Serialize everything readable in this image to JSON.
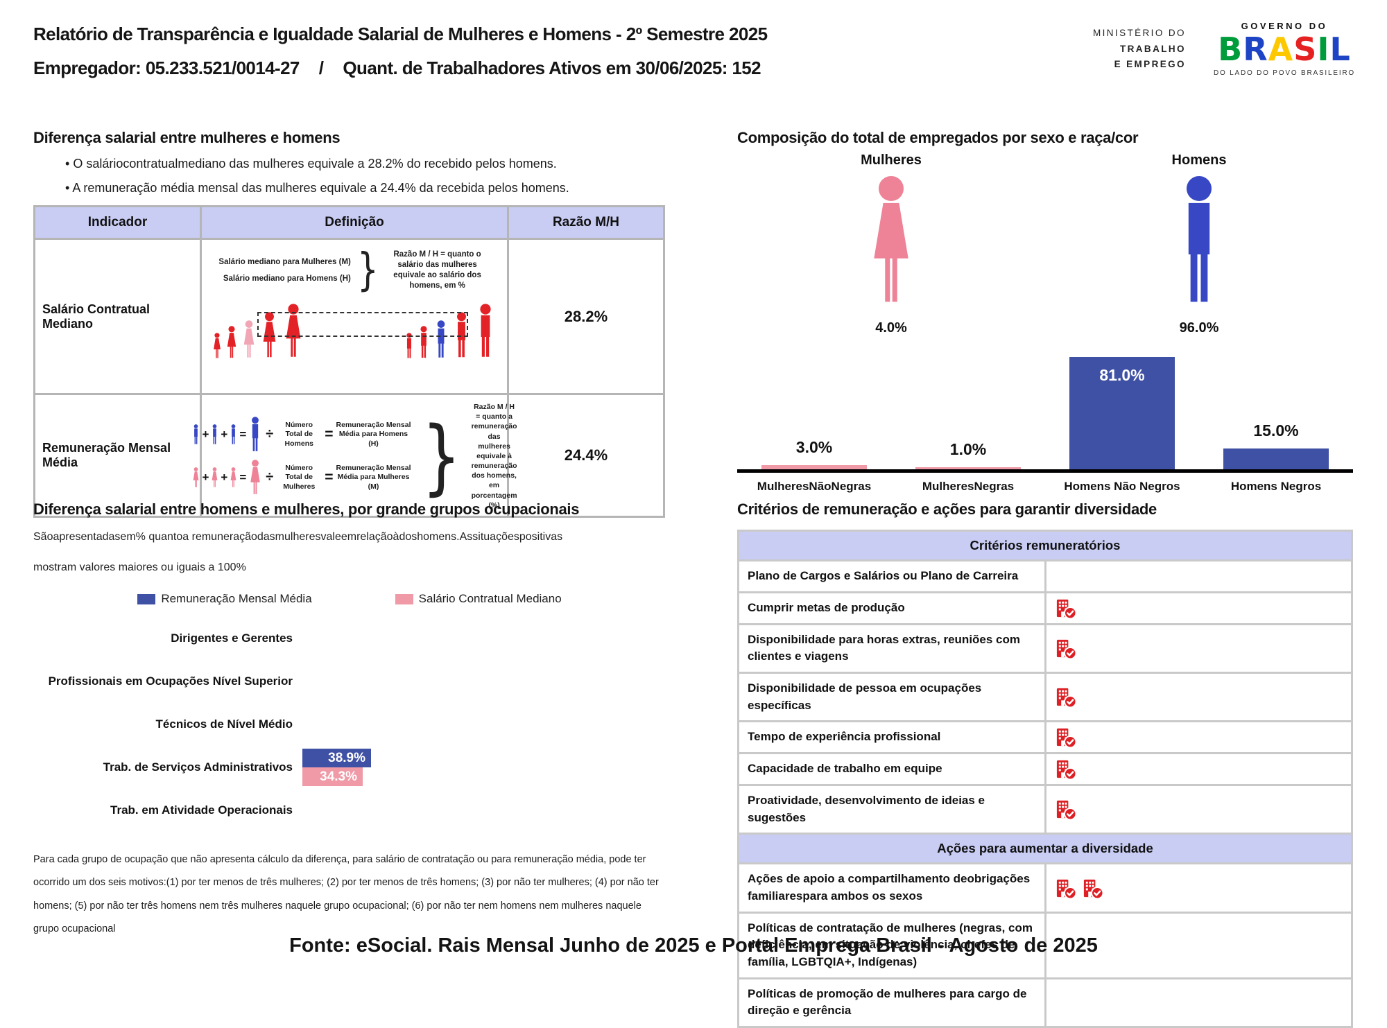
{
  "colors": {
    "chart_blue": "#3f51a5",
    "chart_pink": "#ef9aa6",
    "figure_red": "#e32227",
    "figure_pink": "#ee8296",
    "figure_blue": "#3848c5",
    "highlight_pink": "#f2a6b5",
    "lavender": "#c9cdf4",
    "icon_red": "#dd2025",
    "table_border": "#b5b5b5"
  },
  "header": {
    "title": "Relatório de Transparência e Igualdade Salarial de Mulheres e Homens - 2º Semestre 2025",
    "employer": "Empregador: 05.233.521/0014-27",
    "separator": "/",
    "workers": "Quant. de Trabalhadores Ativos em 30/06/2025: 152",
    "ministry": {
      "line1": "MINISTÉRIO DO",
      "line2": "TRABALHO",
      "line3": "E EMPREGO"
    },
    "gov": {
      "top": "GOVERNO DO",
      "brasil_letters": [
        {
          "ch": "B",
          "color": "#009c3b"
        },
        {
          "ch": "R",
          "color": "#1c44c4"
        },
        {
          "ch": "A",
          "color": "#fdc800"
        },
        {
          "ch": "S",
          "color": "#e52222"
        },
        {
          "ch": "I",
          "color": "#009c3b"
        },
        {
          "ch": "L",
          "color": "#1c44c4"
        }
      ],
      "tagline": "DO LADO DO POVO BRASILEIRO"
    }
  },
  "salary_gap": {
    "title": "Diferença salarial entre mulheres e homens",
    "bullets": [
      "O saláriocontratualmediano das mulheres equivale a 28.2% do recebido pelos homens.",
      "A remuneração média mensal das mulheres equivale a 24.4% da recebida pelos homens."
    ],
    "table": {
      "headers": [
        "Indicador",
        "Definição",
        "Razão M/H"
      ],
      "row1": {
        "indicator": "Salário Contratual Mediano",
        "def_line_m": "Salário mediano para Mulheres (M)",
        "def_line_h": "Salário mediano para Homens (H)",
        "note": "Razão M / H = quanto o salário das mulheres equivale ao salário dos homens, em %",
        "ratio": "28.2%"
      },
      "row2": {
        "indicator": "Remuneração Mensal Média",
        "ops": {
          "plus": "+",
          "equals": "=",
          "divide": "÷"
        },
        "men_num": "Número Total de Homens",
        "men_res": "Remuneração Mensal Média para Homens (H)",
        "women_num": "Número Total de Mulheres",
        "women_res": "Remuneração Mensal Média para Mulheres (M)",
        "note": "Razão M / H = quanto a remuneração das mulheres equivale à remuneração dos homens, em porcentagem (%)",
        "ratio": "24.4%"
      }
    }
  },
  "composition": {
    "title": "Composição do total de empregados por sexo e raça/cor",
    "women_label": "Mulheres",
    "women_value": "4.0%",
    "men_label": "Homens",
    "men_value": "96.0%"
  },
  "occupations": {
    "title": "Diferença salarial entre homens e mulheres, por grande grupos ocupacionais",
    "desc_line1": "Sãoapresentadasem% quantoa remuneraçãodasmulheresvaleemrelaçãoàdoshomens.Assituaçõespositivas",
    "desc_line2": "mostram valores maiores ou iguais a 100%",
    "footnote": "Para cada grupo de ocupação que não apresenta cálculo da diferença, para salário de contratação ou para remuneração média, pode ter ocorrido um dos seis motivos:(1) por ter menos de três mulheres; (2) por ter menos de três homens; (3) por não ter mulheres; (4) por não ter homens; (5) por não ter três homens nem três mulheres naquele grupo ocupacional; (6) por não ter nem homens nem mulheres naquele grupo ocupacional"
  },
  "criteria": {
    "title": "Critérios de remuneração e ações para garantir diversidade",
    "sections": [
      {
        "header": "Critérios remuneratórios",
        "rows": [
          {
            "label": "Plano de Cargos e Salários ou Plano de Carreira",
            "icons": 0
          },
          {
            "label": "Cumprir metas de produção",
            "icons": 1
          },
          {
            "label": "Disponibilidade para horas extras, reuniões com clientes e viagens",
            "icons": 1
          },
          {
            "label": "Disponibilidade de pessoa em ocupações específicas",
            "icons": 1
          },
          {
            "label": "Tempo de experiência profissional",
            "icons": 1
          },
          {
            "label": "Capacidade de trabalho em equipe",
            "icons": 1
          },
          {
            "label": "Proatividade, desenvolvimento de ideias e sugestões",
            "icons": 1
          }
        ]
      },
      {
        "header": "Ações para aumentar a diversidade",
        "rows": [
          {
            "label": "Ações de apoio a compartilhamento deobrigações familiarespara ambos os sexos",
            "icons": 2
          },
          {
            "label": "Políticas de contratação de mulheres (negras, com deficiência, em situação de violência, chefes de família, LGBTQIA+, Indígenas)",
            "icons": 0
          },
          {
            "label": "Políticas de promoção de mulheres para cargo de direção e gerência",
            "icons": 0
          }
        ]
      }
    ]
  },
  "footer": {
    "source": "Fonte: eSocial. Rais Mensal Junho de 2025 e Portal Emprega Brasil - Agosto de 2025"
  },
  "chart_data": [
    {
      "type": "bar",
      "title": "Composição do total de empregados por sexo e raça/cor",
      "categories": [
        "MulheresNãoNegras",
        "MulheresNegras",
        "Homens Não Negros",
        "Homens Negros"
      ],
      "values": [
        3.0,
        1.0,
        81.0,
        15.0
      ],
      "labels": [
        "3.0%",
        "1.0%",
        "81.0%",
        "15.0%"
      ],
      "colors": [
        "#ef9aa6",
        "#ef9aa6",
        "#3f51a5",
        "#3f51a5"
      ],
      "sex_split": {
        "Mulheres": 4.0,
        "Homens": 96.0
      },
      "ylim": [
        0,
        100
      ],
      "grid": false,
      "legend": "none"
    },
    {
      "type": "bar-horizontal",
      "title": "Diferença salarial entre homens e mulheres, por grande grupos ocupacionais",
      "categories": [
        "Dirigentes e Gerentes",
        "Profissionais em Ocupações Nível Superior",
        "Técnicos de Nível Médio",
        "Trab. de Serviços Administrativos",
        "Trab. em Atividade Operacionais"
      ],
      "series": [
        {
          "name": "Remuneração Mensal Média",
          "color": "#3f51a5",
          "values": [
            null,
            null,
            null,
            38.9,
            null
          ]
        },
        {
          "name": "Salário Contratual Mediano",
          "color": "#ef9aa6",
          "values": [
            null,
            null,
            null,
            34.3,
            null
          ]
        }
      ],
      "value_suffix": "%",
      "xlim": [
        0,
        200
      ],
      "grid": false,
      "legend": "top"
    }
  ]
}
